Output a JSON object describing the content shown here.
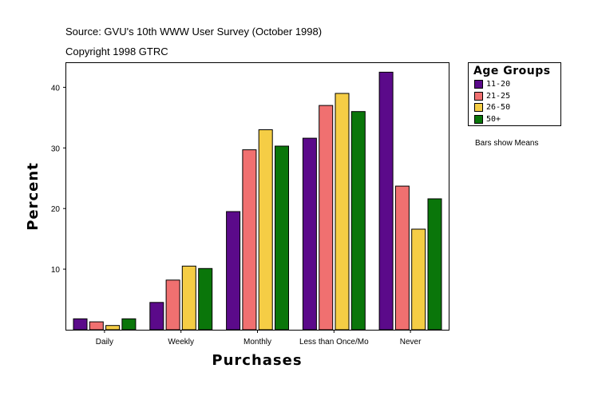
{
  "header": {
    "source": "Source: GVU's 10th WWW User Survey (October 1998)",
    "copyright": "Copyright 1998 GTRC"
  },
  "note": "Bars show Means",
  "colors": {
    "11-20": "#5b0a8a",
    "21-25": "#f07070",
    "26-50": "#f5cd45",
    "50+": "#0a760a",
    "frame": "#000000"
  },
  "chart_data": {
    "type": "bar",
    "xlabel": "Purchases",
    "ylabel": "Percent",
    "ylim": [
      0,
      44
    ],
    "yticks": [
      10,
      20,
      30,
      40
    ],
    "categories": [
      "Daily",
      "Weekly",
      "Monthly",
      "Less than Once/Mo",
      "Never"
    ],
    "legend_title": "Age Groups",
    "legend_position": "top-right, outside plot",
    "grid": false,
    "series": [
      {
        "name": "11-20",
        "values": [
          1.8,
          4.5,
          19.5,
          31.6,
          42.5
        ]
      },
      {
        "name": "21-25",
        "values": [
          1.3,
          8.2,
          29.7,
          37.0,
          23.7
        ]
      },
      {
        "name": "26-50",
        "values": [
          0.7,
          10.5,
          33.0,
          39.0,
          16.6
        ]
      },
      {
        "name": "50+",
        "values": [
          1.8,
          10.1,
          30.3,
          36.0,
          21.6
        ]
      }
    ]
  }
}
